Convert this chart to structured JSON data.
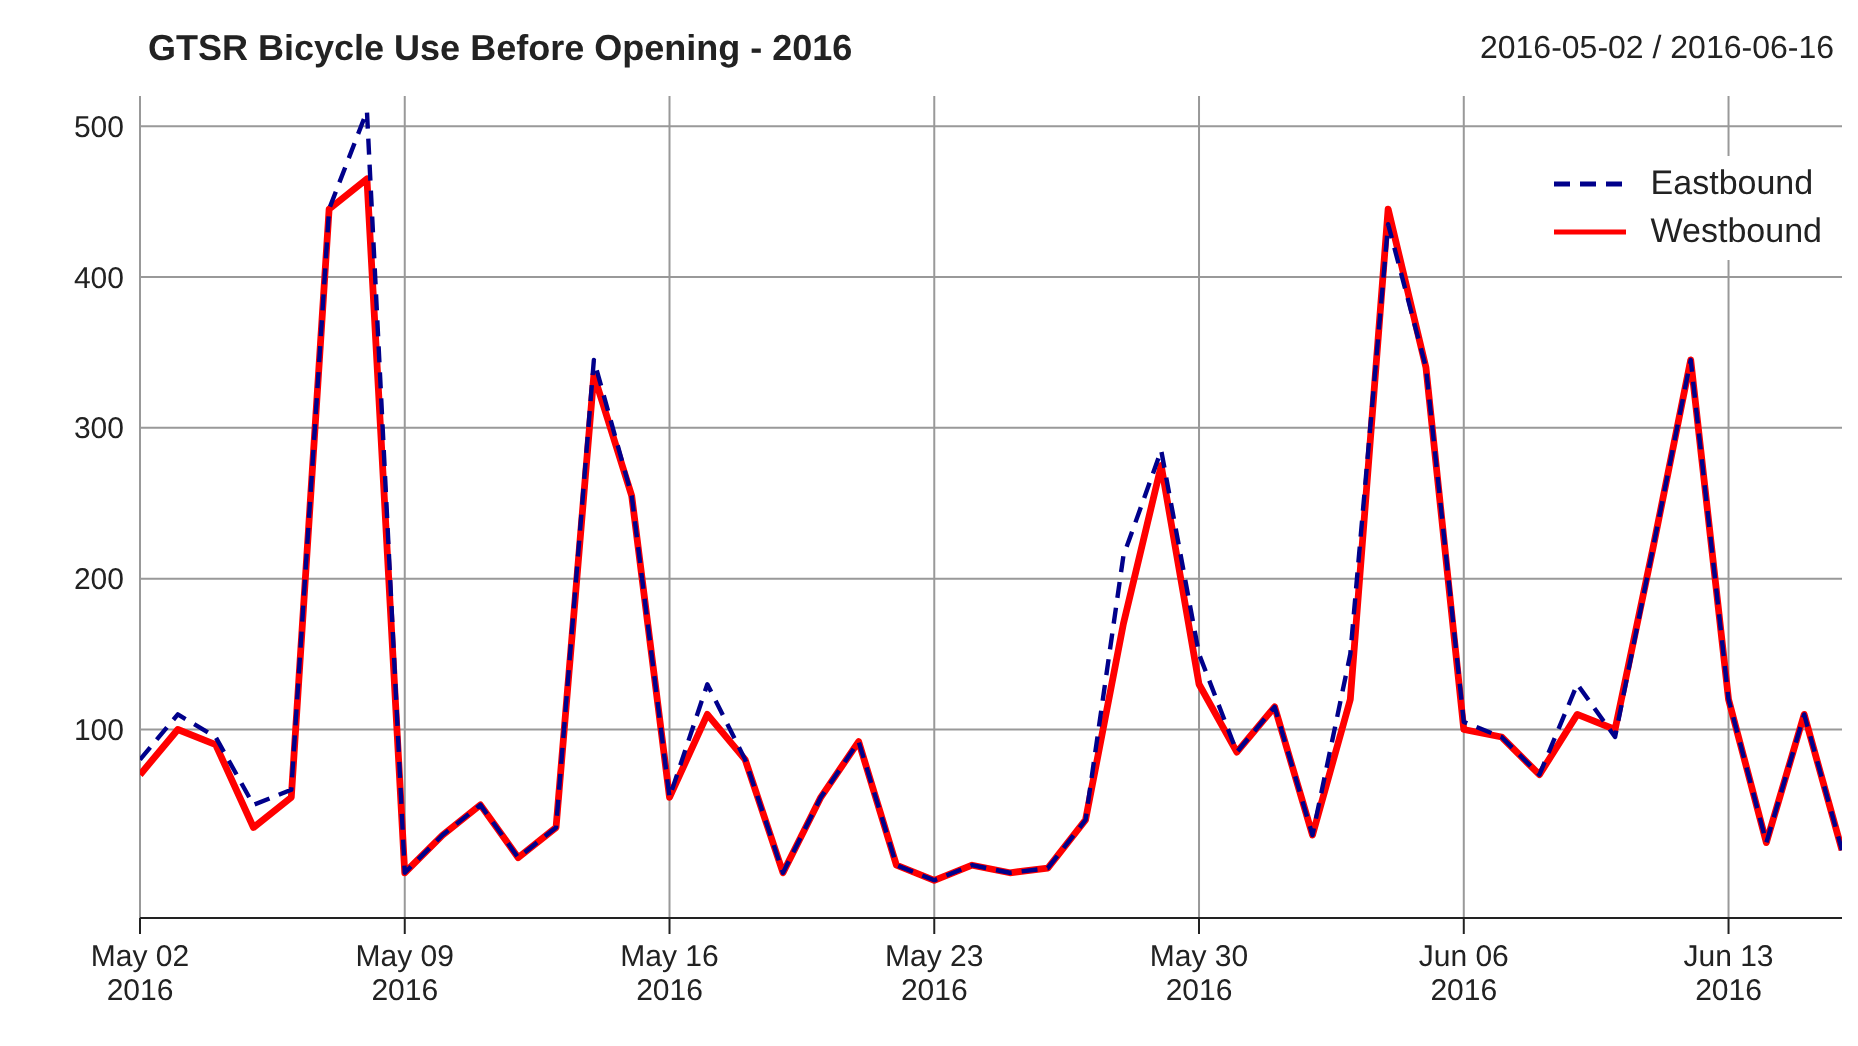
{
  "chart_data": {
    "type": "line",
    "title": "GTSR Bicycle Use Before Opening - 2016",
    "subtitle": "2016-05-02 / 2016-06-16",
    "x": [
      "2016-05-02",
      "2016-05-03",
      "2016-05-04",
      "2016-05-05",
      "2016-05-06",
      "2016-05-07",
      "2016-05-08",
      "2016-05-09",
      "2016-05-10",
      "2016-05-11",
      "2016-05-12",
      "2016-05-13",
      "2016-05-14",
      "2016-05-15",
      "2016-05-16",
      "2016-05-17",
      "2016-05-18",
      "2016-05-19",
      "2016-05-20",
      "2016-05-21",
      "2016-05-22",
      "2016-05-23",
      "2016-05-24",
      "2016-05-25",
      "2016-05-26",
      "2016-05-27",
      "2016-05-28",
      "2016-05-29",
      "2016-05-30",
      "2016-05-31",
      "2016-06-01",
      "2016-06-02",
      "2016-06-03",
      "2016-06-04",
      "2016-06-05",
      "2016-06-06",
      "2016-06-07",
      "2016-06-08",
      "2016-06-09",
      "2016-06-10",
      "2016-06-11",
      "2016-06-12",
      "2016-06-13",
      "2016-06-14",
      "2016-06-15",
      "2016-06-16"
    ],
    "series": [
      {
        "name": "Eastbound",
        "color": "#00008b",
        "line_style": "dashed",
        "values": [
          80,
          110,
          95,
          50,
          60,
          445,
          510,
          5,
          30,
          50,
          15,
          35,
          345,
          255,
          55,
          130,
          80,
          5,
          55,
          92,
          10,
          0,
          10,
          5,
          8,
          40,
          215,
          285,
          150,
          85,
          115,
          30,
          150,
          435,
          340,
          105,
          95,
          70,
          130,
          95,
          220,
          345,
          120,
          25,
          110,
          20
        ]
      },
      {
        "name": "Westbound",
        "color": "#ff0000",
        "line_style": "solid",
        "values": [
          70,
          100,
          90,
          35,
          55,
          445,
          465,
          5,
          30,
          50,
          15,
          35,
          335,
          255,
          55,
          110,
          80,
          5,
          55,
          92,
          10,
          0,
          10,
          5,
          8,
          40,
          170,
          275,
          130,
          85,
          115,
          30,
          120,
          445,
          340,
          100,
          95,
          70,
          110,
          100,
          220,
          345,
          120,
          25,
          110,
          20
        ]
      }
    ],
    "xlim": [
      "2016-05-02",
      "2016-06-16"
    ],
    "xticks": [
      {
        "value": "2016-05-02",
        "label": "May 02\n2016"
      },
      {
        "value": "2016-05-09",
        "label": "May 09\n2016"
      },
      {
        "value": "2016-05-16",
        "label": "May 16\n2016"
      },
      {
        "value": "2016-05-23",
        "label": "May 23\n2016"
      },
      {
        "value": "2016-05-30",
        "label": "May 30\n2016"
      },
      {
        "value": "2016-06-06",
        "label": "Jun 06\n2016"
      },
      {
        "value": "2016-06-13",
        "label": "Jun 13\n2016"
      }
    ],
    "ylim": [
      -25,
      520
    ],
    "yticks": [
      100,
      200,
      300,
      400,
      500
    ],
    "grid": true,
    "legend": "top right"
  }
}
